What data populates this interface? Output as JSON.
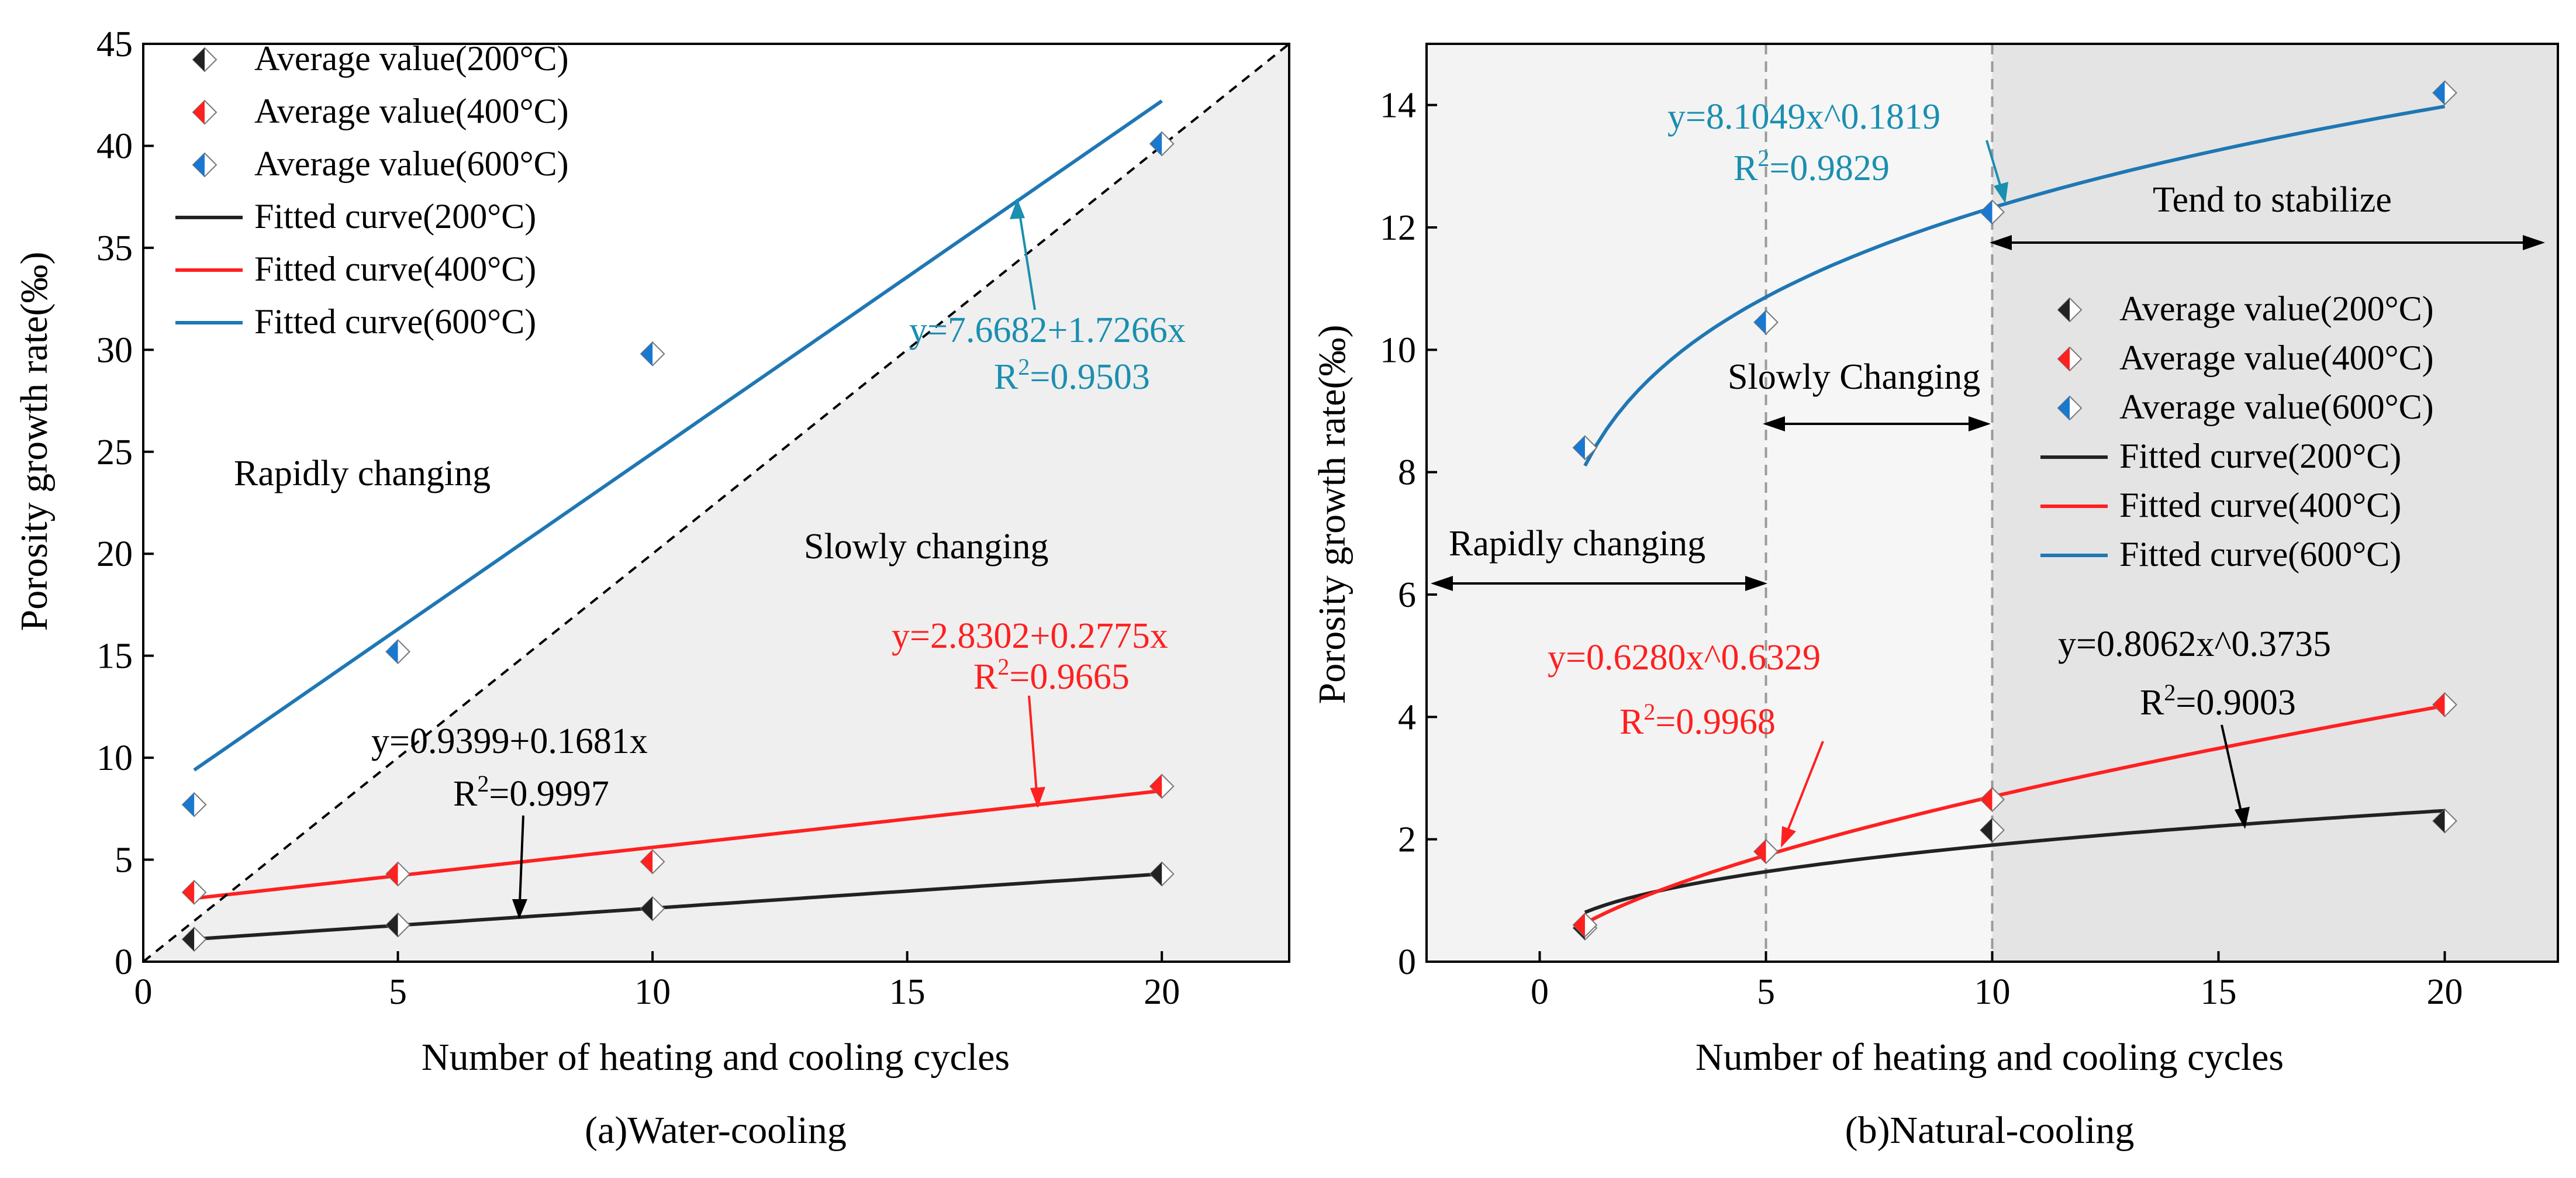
{
  "chart_data": [
    {
      "type": "scatter",
      "panel": "a",
      "caption": "(a)Water-cooling",
      "xlabel": "Number of heating and cooling cycles",
      "ylabel": "Porosity growth rate(‰)",
      "xlim": [
        0,
        22.5
      ],
      "ylim": [
        0,
        45
      ],
      "xticks": [
        0,
        5,
        10,
        15,
        20
      ],
      "yticks": [
        0,
        5,
        10,
        15,
        20,
        25,
        30,
        35,
        40,
        45
      ],
      "x": [
        1,
        5,
        10,
        20
      ],
      "colors": {
        "200": "#222222",
        "400": "#ff2020",
        "600": "#1a78d0",
        "fit600": "#1f77b4",
        "annot600": "#1a8fb0"
      },
      "series": [
        {
          "name": "Average value(200°C)",
          "key": "200",
          "values": [
            1.1,
            1.8,
            2.6,
            4.3
          ]
        },
        {
          "name": "Average value(400°C)",
          "key": "400",
          "values": [
            3.4,
            4.3,
            4.9,
            8.6
          ]
        },
        {
          "name": "Average value(600°C)",
          "key": "600",
          "values": [
            7.7,
            15.2,
            29.8,
            40.1
          ]
        }
      ],
      "fits": [
        {
          "name": "Fitted curve(200°C)",
          "key": "200",
          "kind": "linear",
          "a": 0.9399,
          "b": 0.1681,
          "x_range": [
            1,
            20
          ],
          "equation": "y=0.9399+0.1681x",
          "r2": "=0.9997"
        },
        {
          "name": "Fitted curve(400°C)",
          "key": "400",
          "kind": "linear",
          "a": 2.8302,
          "b": 0.2775,
          "x_range": [
            1,
            20
          ],
          "equation": "y=2.8302+0.2775x",
          "r2": "=0.9665"
        },
        {
          "name": "Fitted curve(600°C)",
          "key": "600",
          "kind": "linear",
          "a": 7.6682,
          "b": 1.7266,
          "x_range": [
            1,
            20
          ],
          "equation": "y=7.6682+1.7266x",
          "r2": "=0.9503"
        }
      ],
      "r2_prefix": "R",
      "r2_sup": "2",
      "diagonal": {
        "from": [
          0,
          0
        ],
        "to": [
          22.5,
          45
        ]
      },
      "region_labels": [
        "Rapidly changing",
        "Slowly changing"
      ]
    },
    {
      "type": "scatter",
      "panel": "b",
      "caption": "(b)Natural-cooling",
      "xlabel": "Number of heating and cooling cycles",
      "ylabel": "Porosity growth rate(‰)",
      "xlim": [
        -2.5,
        22.5
      ],
      "ylim": [
        0,
        15
      ],
      "xticks": [
        0,
        5,
        10,
        15,
        20
      ],
      "yticks": [
        0,
        2,
        4,
        6,
        8,
        10,
        12,
        14
      ],
      "x": [
        1,
        5,
        10,
        20
      ],
      "colors": {
        "200": "#222222",
        "400": "#ff2020",
        "600": "#1a78d0",
        "fit600": "#1f77b4",
        "annot600": "#1a8fb0"
      },
      "series": [
        {
          "name": "Average value(200°C)",
          "key": "200",
          "values": [
            0.55,
            1.8,
            2.15,
            2.3
          ]
        },
        {
          "name": "Average value(400°C)",
          "key": "400",
          "values": [
            0.6,
            1.8,
            2.65,
            4.2
          ]
        },
        {
          "name": "Average value(600°C)",
          "key": "600",
          "values": [
            8.4,
            10.45,
            12.25,
            14.2
          ]
        }
      ],
      "fits": [
        {
          "name": "Fitted curve(200°C)",
          "key": "200",
          "kind": "power",
          "a": 0.8062,
          "b": 0.3735,
          "x_range": [
            1,
            20
          ],
          "equation": "y=0.8062x^0.3735",
          "r2": "=0.9003"
        },
        {
          "name": "Fitted curve(400°C)",
          "key": "400",
          "kind": "power",
          "a": 0.628,
          "b": 0.6329,
          "x_range": [
            1,
            20
          ],
          "equation": "y=0.6280x^0.6329",
          "r2": "=0.9968"
        },
        {
          "name": "Fitted curve(600°C)",
          "key": "600",
          "kind": "power",
          "a": 8.1049,
          "b": 0.1819,
          "x_range": [
            1,
            20
          ],
          "equation": "y=8.1049x^0.1819",
          "r2": "=0.9829"
        }
      ],
      "r2_prefix": "R",
      "r2_sup": "2",
      "stage_boundaries": [
        5,
        10
      ],
      "stages": [
        {
          "label": "Rapidly changing",
          "from": -2.5,
          "to": 5
        },
        {
          "label": "Slowly Changing",
          "from": 5,
          "to": 10
        },
        {
          "label": "Tend to stabilize",
          "from": 10,
          "to": 22.5
        }
      ]
    }
  ]
}
